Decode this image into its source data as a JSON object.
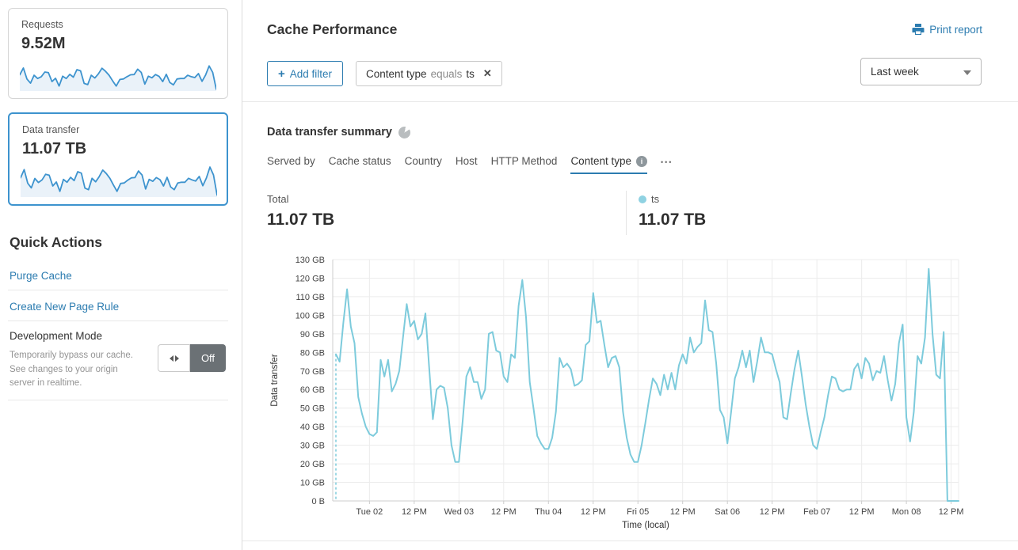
{
  "colors": {
    "accent_blue": "#2c7cb0",
    "sparkline_stroke": "#3d93ce",
    "sparkline_fill": "#eaf2f9",
    "series_line": "#7dcbdc",
    "legend_dot": "#8fd2e2",
    "selected_card_border": "#3d93ce",
    "toggle_off_bg": "#6b7175",
    "grid": "#ececec",
    "axis": "#cccccc"
  },
  "sidebar": {
    "cards": [
      {
        "label": "Requests",
        "value": "9.52M",
        "sparkline": [
          66,
          95,
          48,
          30,
          64,
          50,
          58,
          78,
          75,
          37,
          51,
          18,
          60,
          50,
          68,
          56,
          88,
          83,
          29,
          24,
          64,
          52,
          70,
          94,
          81,
          64,
          40,
          18,
          46,
          48,
          58,
          66,
          67,
          90,
          76,
          26,
          60,
          53,
          67,
          59,
          37,
          68,
          33,
          23,
          48,
          50,
          50,
          64,
          58,
          54,
          71,
          38,
          65,
          104,
          76,
          4
        ]
      },
      {
        "label": "Data transfer",
        "value": "11.07 TB",
        "selected": true,
        "sparkline": [
          79,
          114,
          56,
          36,
          76,
          59,
          70,
          94,
          90,
          44,
          61,
          21,
          72,
          60,
          81,
          67,
          105,
          99,
          35,
          28,
          77,
          62,
          84,
          112,
          97,
          77,
          48,
          21,
          55,
          57,
          69,
          79,
          80,
          108,
          91,
          31,
          72,
          64,
          80,
          71,
          44,
          81,
          40,
          28,
          57,
          60,
          60,
          77,
          70,
          65,
          85,
          45,
          78,
          125,
          91,
          5
        ]
      }
    ],
    "quick_actions": {
      "title": "Quick Actions",
      "links": [
        "Purge Cache",
        "Create New Page Rule"
      ],
      "dev_mode": {
        "title": "Development Mode",
        "description": "Temporarily bypass our cache. See changes to your origin server in realtime.",
        "toggle_state": "Off"
      }
    }
  },
  "header": {
    "title": "Cache Performance",
    "print_label": "Print report",
    "add_filter_label": "Add filter",
    "add_filter_plus": "+",
    "filter_chip": {
      "field": "Content type",
      "operator": "equals",
      "value": "ts",
      "close": "✕"
    },
    "time_range": "Last week"
  },
  "summary": {
    "title": "Data transfer summary",
    "tabs": [
      {
        "label": "Served by"
      },
      {
        "label": "Cache status"
      },
      {
        "label": "Country"
      },
      {
        "label": "Host"
      },
      {
        "label": "HTTP Method"
      },
      {
        "label": "Content type",
        "active": true,
        "info": true
      }
    ],
    "more_label": "•••",
    "total": {
      "label": "Total",
      "value": "11.07 TB"
    },
    "legend": {
      "label": "ts",
      "value": "11.07 TB",
      "color": "#8fd2e2"
    }
  },
  "chart_data": {
    "type": "line",
    "title": "Data transfer summary",
    "xlabel": "Time (local)",
    "ylabel": "Data transfer",
    "ylim": [
      0,
      130
    ],
    "grid": true,
    "y_tick_labels": [
      "0 B",
      "10 GB",
      "20 GB",
      "30 GB",
      "40 GB",
      "50 GB",
      "60 GB",
      "70 GB",
      "80 GB",
      "90 GB",
      "100 GB",
      "110 GB",
      "120 GB",
      "130 GB"
    ],
    "x_ticks": [
      {
        "i": 9,
        "label": "Tue 02"
      },
      {
        "i": 21,
        "label": "12 PM"
      },
      {
        "i": 33,
        "label": "Wed 03"
      },
      {
        "i": 45,
        "label": "12 PM"
      },
      {
        "i": 57,
        "label": "Thu 04"
      },
      {
        "i": 69,
        "label": "12 PM"
      },
      {
        "i": 81,
        "label": "Fri 05"
      },
      {
        "i": 93,
        "label": "12 PM"
      },
      {
        "i": 105,
        "label": "Sat 06"
      },
      {
        "i": 117,
        "label": "12 PM"
      },
      {
        "i": 129,
        "label": "Feb 07"
      },
      {
        "i": 141,
        "label": "12 PM"
      },
      {
        "i": 153,
        "label": "Mon 08"
      },
      {
        "i": 165,
        "label": "12 PM"
      }
    ],
    "dashed_start": true,
    "series": [
      {
        "name": "ts",
        "unit": "GB",
        "color": "#7dcbdc",
        "values": [
          79,
          75,
          96,
          114,
          94,
          85,
          56,
          47,
          40,
          36,
          35,
          37,
          76,
          67,
          76,
          59,
          63,
          70,
          88,
          106,
          94,
          97,
          87,
          90,
          101,
          72,
          44,
          60,
          62,
          61,
          50,
          30,
          21,
          21,
          43,
          67,
          72,
          64,
          64,
          55,
          60,
          90,
          91,
          81,
          80,
          67,
          64,
          79,
          77,
          105,
          119,
          99,
          64,
          50,
          35,
          31,
          28,
          28,
          34,
          48,
          77,
          72,
          74,
          71,
          62,
          63,
          65,
          84,
          86,
          112,
          96,
          97,
          84,
          72,
          77,
          78,
          72,
          48,
          34,
          25,
          21,
          21,
          30,
          42,
          55,
          66,
          63,
          57,
          68,
          60,
          69,
          60,
          73,
          79,
          74,
          88,
          80,
          83,
          85,
          108,
          92,
          91,
          74,
          49,
          45,
          31,
          48,
          66,
          72,
          81,
          72,
          81,
          64,
          75,
          88,
          80,
          80,
          79,
          71,
          64,
          45,
          44,
          58,
          71,
          81,
          67,
          52,
          40,
          30,
          28,
          37,
          45,
          57,
          67,
          66,
          60,
          59,
          60,
          60,
          71,
          74,
          66,
          77,
          74,
          65,
          70,
          69,
          78,
          65,
          54,
          63,
          85,
          95,
          45,
          32,
          48,
          78,
          74,
          88,
          125,
          90,
          68,
          66,
          91,
          0,
          0,
          0,
          0
        ]
      }
    ]
  }
}
